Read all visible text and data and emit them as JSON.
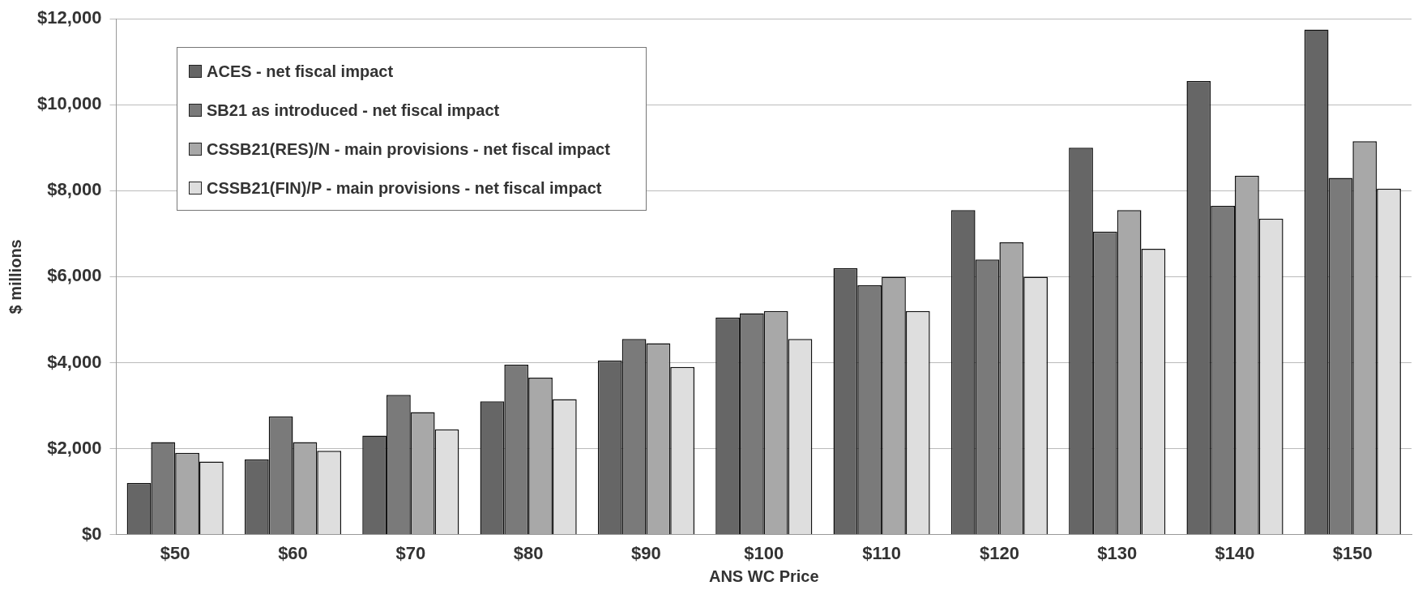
{
  "chart_data": {
    "type": "bar",
    "xlabel": "ANS WC Price",
    "ylabel": "$ millions",
    "categories": [
      "$50",
      "$60",
      "$70",
      "$80",
      "$90",
      "$100",
      "$110",
      "$120",
      "$130",
      "$140",
      "$150"
    ],
    "series": [
      {
        "name": "ACES - net fiscal impact",
        "color": "#666666",
        "values": [
          1200,
          1750,
          2300,
          3100,
          4050,
          5050,
          6200,
          7550,
          9000,
          10550,
          11750
        ]
      },
      {
        "name": "SB21 as introduced - net fiscal impact",
        "color": "#7a7a7a",
        "values": [
          2150,
          2750,
          3250,
          3950,
          4550,
          5150,
          5800,
          6400,
          7050,
          7650,
          8300
        ]
      },
      {
        "name": "CSSB21(RES)/N - main provisions - net fiscal impact",
        "color": "#a8a8a8",
        "values": [
          1900,
          2150,
          2850,
          3650,
          4450,
          5200,
          6000,
          6800,
          7550,
          8350,
          9150
        ]
      },
      {
        "name": "CSSB21(FIN)/P - main provisions - net fiscal impact",
        "color": "#dedede",
        "values": [
          1700,
          1950,
          2450,
          3150,
          3900,
          4550,
          5200,
          6000,
          6650,
          7350,
          8050
        ]
      }
    ],
    "ylim": [
      0,
      12000
    ],
    "yticks": [
      {
        "value": 0,
        "label": "$0"
      },
      {
        "value": 2000,
        "label": "$2,000"
      },
      {
        "value": 4000,
        "label": "$4,000"
      },
      {
        "value": 6000,
        "label": "$6,000"
      },
      {
        "value": 8000,
        "label": "$8,000"
      },
      {
        "value": 10000,
        "label": "$10,000"
      },
      {
        "value": 12000,
        "label": "$12,000"
      }
    ],
    "grid": "y",
    "legend": "top left"
  }
}
